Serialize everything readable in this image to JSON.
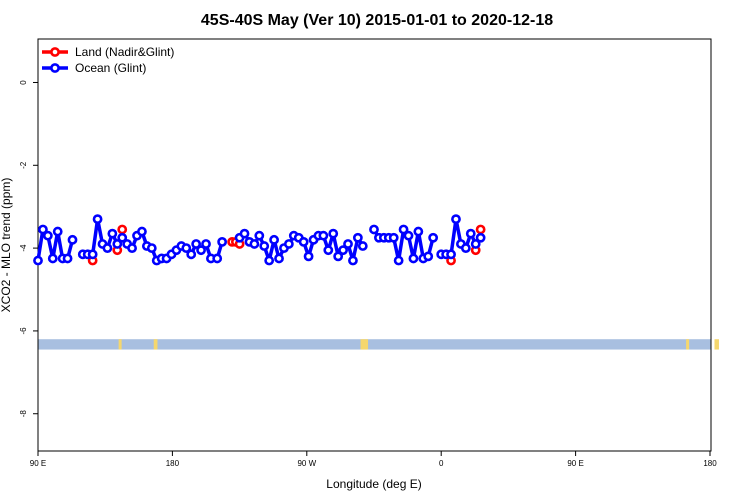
{
  "chart_data": {
    "type": "line",
    "title": "45S-40S May (Ver 10)   2015-01-01 to 2020-12-18",
    "xlabel": "Longitude (deg E)",
    "ylabel": "XCO2 - MLO trend (ppm)",
    "xlim": [
      90,
      450
    ],
    "ylim": [
      -8.9,
      1.05
    ],
    "x_ticks": [
      {
        "value": 90,
        "label": "90 E"
      },
      {
        "value": 180,
        "label": "180"
      },
      {
        "value": 270,
        "label": "90 W"
      },
      {
        "value": 360,
        "label": "0"
      },
      {
        "value": 450,
        "label": "90 E"
      },
      {
        "value": 540,
        "label": "180"
      }
    ],
    "x_transform": "x_display = 90 + (lon_wrapped - 90) / 2 ; axis spans 90E..180 (720 deg compressed)",
    "y_ticks": [
      0,
      -2,
      -4,
      -6,
      -8
    ],
    "grid": false,
    "legend_position": "top-left",
    "legend": [
      {
        "label": "Land (Nadir&Glint)",
        "color": "#ff0000"
      },
      {
        "label": "Ocean (Glint)",
        "color": "#0000ff"
      }
    ],
    "land_band": {
      "y_range": [
        -6.45,
        -6.2
      ],
      "ocean_color": "#a8bfe0",
      "land_color": "#f5d76e",
      "land_segments": [
        [
          144,
          146
        ],
        [
          167.5,
          170
        ],
        [
          306,
          311
        ],
        [
          524,
          526
        ],
        [
          543,
          546
        ]
      ]
    },
    "series": [
      {
        "name": "Ocean (Glint)",
        "color": "#0000ff",
        "points": [
          [
            90,
            -4.3
          ],
          [
            93.3,
            -3.55
          ],
          [
            96.6,
            -3.7
          ],
          [
            99.9,
            -4.25
          ],
          [
            103.2,
            -3.6
          ],
          [
            106.5,
            -4.25
          ],
          [
            109.8,
            -4.25
          ],
          [
            113.1,
            -3.8
          ],
          [
            null,
            null
          ],
          [
            120,
            -4.15
          ],
          [
            123.3,
            -4.15
          ],
          [
            126.6,
            -4.15
          ],
          [
            129.9,
            -3.3
          ],
          [
            133.2,
            -3.9
          ],
          [
            136.5,
            -4.0
          ],
          [
            139.8,
            -3.65
          ],
          [
            143.1,
            -3.9
          ],
          [
            146.4,
            -3.75
          ],
          [
            149.7,
            -3.9
          ],
          [
            153,
            -4.0
          ],
          [
            156.3,
            -3.7
          ],
          [
            159.6,
            -3.6
          ],
          [
            162.9,
            -3.95
          ],
          [
            166.2,
            -4.0
          ],
          [
            169.5,
            -4.3
          ],
          [
            172.8,
            -4.25
          ],
          [
            176.1,
            -4.25
          ],
          [
            179.4,
            -4.15
          ],
          [
            182.7,
            -4.05
          ],
          [
            186,
            -3.95
          ],
          [
            189.3,
            -4.0
          ],
          [
            192.6,
            -4.15
          ],
          [
            195.9,
            -3.9
          ],
          [
            199.2,
            -4.05
          ],
          [
            202.5,
            -3.9
          ],
          [
            205.8,
            -4.25
          ],
          [
            null,
            null
          ],
          [
            210,
            -4.25
          ],
          [
            213.3,
            -3.85
          ],
          [
            null,
            null
          ],
          [
            225,
            -3.75
          ],
          [
            228.3,
            -3.65
          ],
          [
            231.6,
            -3.85
          ],
          [
            234.9,
            -3.9
          ],
          [
            238.2,
            -3.7
          ],
          [
            241.5,
            -3.95
          ],
          [
            244.8,
            -4.3
          ],
          [
            248.1,
            -3.8
          ],
          [
            251.4,
            -4.25
          ],
          [
            254.7,
            -4.0
          ],
          [
            258,
            -3.9
          ],
          [
            261.3,
            -3.7
          ],
          [
            264.6,
            -3.75
          ],
          [
            267.9,
            -3.85
          ],
          [
            271.2,
            -4.2
          ],
          [
            274.5,
            -3.8
          ],
          [
            277.8,
            -3.7
          ],
          [
            281.1,
            -3.7
          ],
          [
            284.4,
            -4.05
          ],
          [
            287.7,
            -3.65
          ],
          [
            291,
            -4.2
          ],
          [
            294.3,
            -4.05
          ],
          [
            297.6,
            -3.9
          ],
          [
            300.9,
            -4.3
          ],
          [
            304.2,
            -3.75
          ],
          [
            307.5,
            -3.95
          ],
          [
            null,
            null
          ],
          [
            315,
            -3.55
          ],
          [
            318.3,
            -3.75
          ],
          [
            321.6,
            -3.75
          ],
          [
            324.9,
            -3.75
          ],
          [
            328.2,
            -3.75
          ],
          [
            331.5,
            -4.3
          ],
          [
            334.8,
            -3.55
          ],
          [
            338.1,
            -3.7
          ],
          [
            341.4,
            -4.25
          ],
          [
            344.7,
            -3.6
          ],
          [
            348,
            -4.25
          ],
          [
            351.3,
            -4.2
          ],
          [
            354.6,
            -3.75
          ],
          [
            null,
            null
          ],
          [
            360,
            -4.15
          ],
          [
            363.3,
            -4.15
          ],
          [
            366.6,
            -4.15
          ],
          [
            369.9,
            -3.3
          ],
          [
            373.2,
            -3.9
          ],
          [
            376.5,
            -4.0
          ],
          [
            379.8,
            -3.65
          ],
          [
            383.1,
            -3.9
          ],
          [
            386.4,
            -3.75
          ]
        ]
      },
      {
        "name": "Land (Nadir&Glint)",
        "color": "#ff0000",
        "points": [
          [
            126.6,
            -4.3
          ],
          [
            143.1,
            -4.05
          ],
          [
            146.4,
            -3.55
          ],
          [
            220,
            -3.85
          ],
          [
            222.5,
            -3.85
          ],
          [
            225,
            -3.9
          ],
          [
            366.6,
            -4.3
          ],
          [
            383.1,
            -4.05
          ],
          [
            386.4,
            -3.55
          ]
        ]
      }
    ]
  }
}
